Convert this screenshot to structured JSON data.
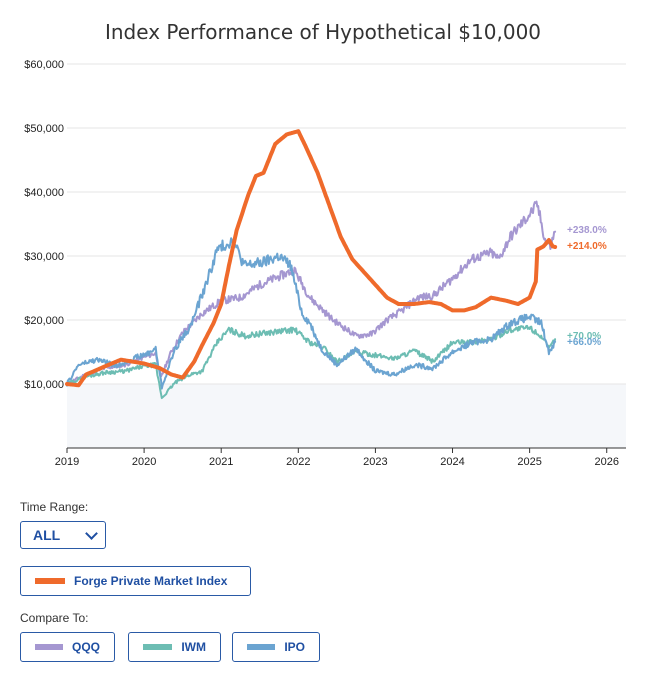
{
  "chart_data": {
    "type": "line",
    "title": "Index Performance of Hypothetical $10,000",
    "xlabel": "",
    "ylabel": "",
    "xlim": [
      2019.0,
      2026.25
    ],
    "ylim": [
      0,
      60000
    ],
    "x_ticks": [
      2019,
      2020,
      2021,
      2022,
      2023,
      2024,
      2025,
      2026
    ],
    "x_tick_labels": [
      "2019",
      "2020",
      "2021",
      "2022",
      "2023",
      "2024",
      "2025",
      "2026"
    ],
    "y_ticks": [
      10000,
      20000,
      30000,
      40000,
      50000,
      60000
    ],
    "y_tick_labels": [
      "$10,000",
      "$20,000",
      "$30,000",
      "$40,000",
      "$50,000",
      "$60,000"
    ],
    "grid": true,
    "shaded_below": 10000,
    "series": [
      {
        "name": "QQQ",
        "color": "#a597d1",
        "end_label": "+238.0%",
        "x": [
          2019.0,
          2019.25,
          2019.5,
          2019.75,
          2020.0,
          2020.15,
          2020.22,
          2020.35,
          2020.5,
          2020.75,
          2021.0,
          2021.25,
          2021.5,
          2021.75,
          2021.95,
          2022.15,
          2022.45,
          2022.75,
          2022.95,
          2023.15,
          2023.35,
          2023.55,
          2023.75,
          2024.0,
          2024.25,
          2024.5,
          2024.6,
          2024.75,
          2025.0,
          2025.1,
          2025.2,
          2025.27,
          2025.33
        ],
        "y": [
          10000,
          11500,
          12500,
          13000,
          14200,
          14800,
          11000,
          15000,
          18000,
          21000,
          23000,
          23500,
          25500,
          26800,
          27800,
          23500,
          20000,
          17500,
          17800,
          20000,
          21500,
          23500,
          23800,
          26500,
          29500,
          30500,
          29500,
          33000,
          36500,
          38000,
          32500,
          31500,
          33800
        ]
      },
      {
        "name": "IWM",
        "color": "#6dbdb3",
        "end_label": "+70.0%",
        "x": [
          2019.0,
          2019.25,
          2019.5,
          2019.75,
          2020.0,
          2020.15,
          2020.23,
          2020.4,
          2020.6,
          2020.75,
          2020.95,
          2021.1,
          2021.3,
          2021.6,
          2021.95,
          2022.15,
          2022.35,
          2022.5,
          2022.75,
          2023.0,
          2023.25,
          2023.5,
          2023.75,
          2024.0,
          2024.25,
          2024.5,
          2024.75,
          2025.0,
          2025.15,
          2025.25,
          2025.33
        ],
        "y": [
          10000,
          11200,
          11800,
          12000,
          12800,
          13000,
          7800,
          10200,
          11500,
          12000,
          16500,
          18500,
          17500,
          18000,
          18500,
          16500,
          15500,
          13500,
          15000,
          14500,
          14000,
          15200,
          13500,
          16500,
          16500,
          17000,
          18500,
          18800,
          17500,
          15500,
          17000
        ]
      },
      {
        "name": "IPO",
        "color": "#6ba4d1",
        "end_label": "+66.0%",
        "x": [
          2019.0,
          2019.15,
          2019.4,
          2019.65,
          2019.85,
          2020.0,
          2020.15,
          2020.23,
          2020.4,
          2020.6,
          2020.8,
          2020.95,
          2021.15,
          2021.3,
          2021.55,
          2021.75,
          2021.9,
          2022.05,
          2022.15,
          2022.3,
          2022.5,
          2022.75,
          2023.0,
          2023.25,
          2023.5,
          2023.75,
          2024.0,
          2024.25,
          2024.5,
          2024.75,
          2025.0,
          2025.15,
          2025.25,
          2025.33
        ],
        "y": [
          10000,
          13000,
          13800,
          12800,
          14000,
          14500,
          15500,
          9500,
          15500,
          19000,
          25500,
          31000,
          32500,
          28500,
          29000,
          30000,
          28500,
          21000,
          19500,
          15500,
          13000,
          15500,
          12000,
          11500,
          13000,
          12500,
          15000,
          16500,
          17000,
          19500,
          20500,
          19500,
          15000,
          16600
        ]
      },
      {
        "name": "Forge Private Market Index",
        "color": "#ef6a2b",
        "end_label": "+214.0%",
        "x": [
          2019.0,
          2019.15,
          2019.25,
          2019.35,
          2019.5,
          2019.7,
          2019.85,
          2020.0,
          2020.2,
          2020.35,
          2020.5,
          2020.65,
          2020.75,
          2020.9,
          2021.0,
          2021.1,
          2021.2,
          2021.35,
          2021.45,
          2021.55,
          2021.7,
          2021.85,
          2022.0,
          2022.1,
          2022.25,
          2022.4,
          2022.55,
          2022.7,
          2022.85,
          2023.0,
          2023.15,
          2023.3,
          2023.5,
          2023.7,
          2023.85,
          2024.0,
          2024.15,
          2024.3,
          2024.5,
          2024.7,
          2024.85,
          2025.0,
          2025.08,
          2025.1,
          2025.18,
          2025.25,
          2025.3,
          2025.33
        ],
        "y": [
          10000,
          9800,
          11500,
          12000,
          12800,
          13800,
          13500,
          13200,
          12500,
          11500,
          11000,
          13500,
          16000,
          19500,
          22500,
          28500,
          34000,
          39500,
          42500,
          43000,
          47500,
          49000,
          49500,
          47000,
          43000,
          38000,
          33000,
          29500,
          27500,
          25500,
          23500,
          22500,
          22500,
          22800,
          22500,
          21500,
          21500,
          22000,
          23500,
          23000,
          22500,
          23500,
          26000,
          31000,
          31500,
          32500,
          31500,
          31400
        ]
      }
    ]
  },
  "controls": {
    "time_range_label": "Time Range:",
    "time_range_value": "ALL",
    "primary_index_button": "Forge Private Market Index",
    "compare_label": "Compare To:",
    "compare_buttons": [
      "QQQ",
      "IWM",
      "IPO"
    ]
  },
  "colors": {
    "forge": "#ef6a2b",
    "qqq": "#a597d1",
    "iwm": "#6dbdb3",
    "ipo": "#6ba4d1",
    "button_border": "#2a5aa6",
    "button_text": "#1f4fa2"
  }
}
